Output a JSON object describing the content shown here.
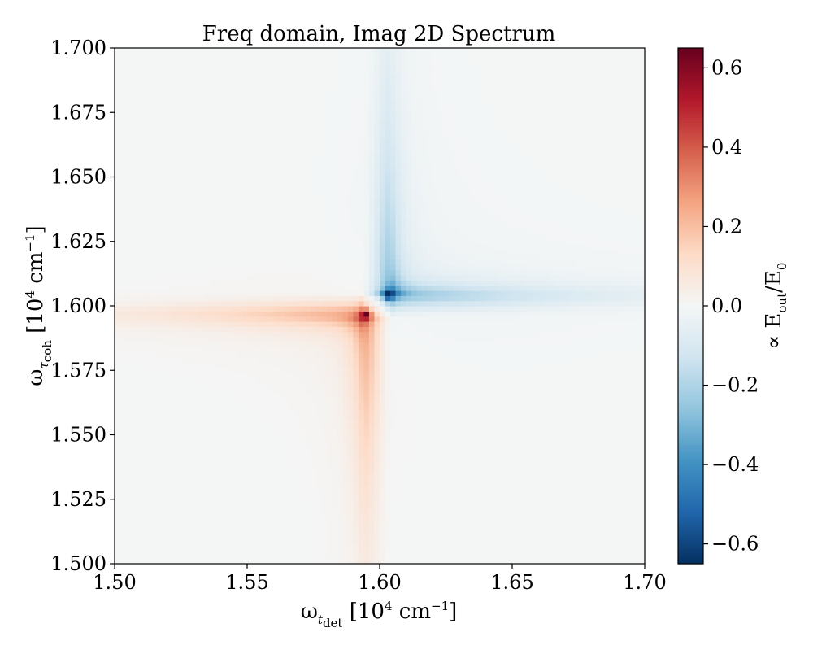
{
  "chart_data": {
    "type": "heatmap",
    "title": "Freq domain, Imag 2D Spectrum",
    "xlabel": {
      "symbol": "ω",
      "sub1": "t",
      "sub2": "det",
      "unit_open": " [10",
      "unit_exp": "4",
      "unit_rest": " cm",
      "unit_exp2": "−1",
      "unit_close": "]"
    },
    "ylabel": {
      "symbol": "ω",
      "sub1": "τ",
      "sub2": "coh",
      "unit_open": " [10",
      "unit_exp": "4",
      "unit_rest": " cm",
      "unit_exp2": "−1",
      "unit_close": "]"
    },
    "xlim": [
      1.5,
      1.7
    ],
    "ylim": [
      1.5,
      1.7
    ],
    "x_ticks": [
      "1.50",
      "1.55",
      "1.60",
      "1.65",
      "1.70"
    ],
    "y_ticks": [
      "1.500",
      "1.525",
      "1.550",
      "1.575",
      "1.600",
      "1.625",
      "1.650",
      "1.675",
      "1.700"
    ],
    "grid": false,
    "colormap": "RdBu_r",
    "color_range": [
      -0.65,
      0.65
    ],
    "peaks": [
      {
        "x": 1.595,
        "y": 1.597,
        "value": 0.65
      },
      {
        "x": 1.603,
        "y": 1.604,
        "value": -0.65
      }
    ],
    "colorbar": {
      "label": {
        "prefix": "∝ E",
        "sub1": "out",
        "mid": "/E",
        "sub2": "0"
      },
      "ticks": [
        "−0.6",
        "−0.4",
        "−0.2",
        "0.0",
        "0.2",
        "0.4",
        "0.6"
      ],
      "tick_values": [
        -0.6,
        -0.4,
        -0.2,
        0.0,
        0.2,
        0.4,
        0.6
      ]
    },
    "colors": {
      "neutral": "#f4f6f6",
      "pos_max": "#67001f",
      "neg_max": "#053061"
    }
  }
}
